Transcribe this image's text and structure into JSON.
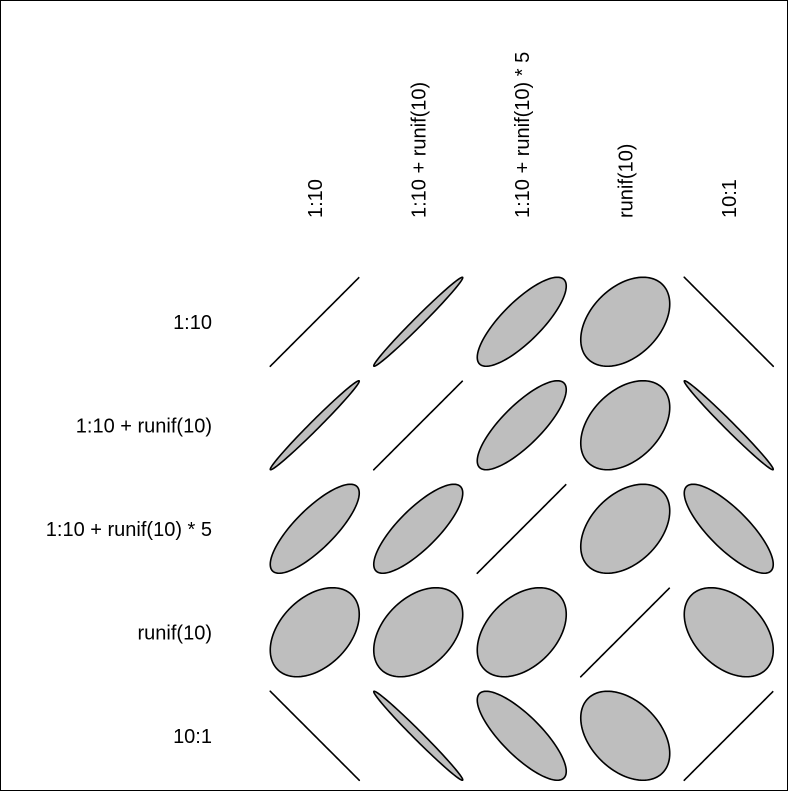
{
  "chart_data": {
    "type": "correlation-ellipse-matrix",
    "variables": [
      "1:10",
      "1:10 + runif(10)",
      "1:10 + runif(10) * 5",
      "runif(10)",
      "10:1"
    ],
    "correlation": [
      [
        1.0,
        0.99,
        0.8,
        0.4,
        -1.0
      ],
      [
        0.99,
        1.0,
        0.8,
        0.4,
        -0.99
      ],
      [
        0.8,
        0.8,
        1.0,
        0.4,
        -0.8
      ],
      [
        0.4,
        0.4,
        0.4,
        1.0,
        -0.4
      ],
      [
        -1.0,
        -0.99,
        -0.8,
        -0.4,
        1.0
      ]
    ],
    "fill_color": "#bebebe",
    "stroke_color": "#000000"
  }
}
